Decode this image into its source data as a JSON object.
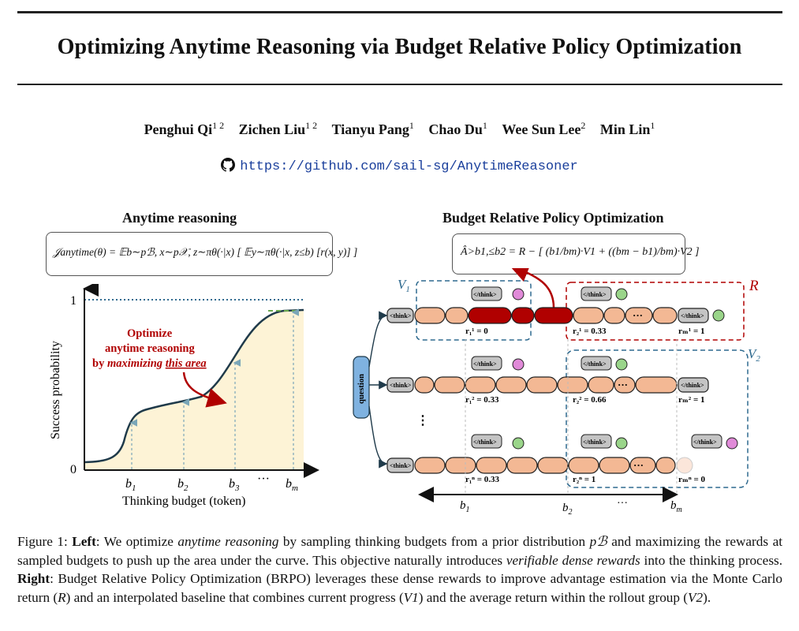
{
  "title": "Optimizing Anytime Reasoning via Budget Relative Policy Optimization",
  "authors": [
    {
      "name": "Penghui Qi",
      "aff": "1 2"
    },
    {
      "name": "Zichen Liu",
      "aff": "1 2"
    },
    {
      "name": "Tianyu Pang",
      "aff": "1"
    },
    {
      "name": "Chao Du",
      "aff": "1"
    },
    {
      "name": "Wee Sun Lee",
      "aff": "2"
    },
    {
      "name": "Min Lin",
      "aff": "1"
    }
  ],
  "repo_url": "https://github.com/sail-sg/AnytimeReasoner",
  "left_panel": {
    "heading": "Anytime reasoning",
    "objective": "𝒥anytime(θ) = 𝔼b∼pℬ, x∼p𝒳, z∼πθ(·|x) [ 𝔼y∼πθ(·|x, z≤b) [r(x, y)] ]",
    "annotation_line1": "Optimize",
    "annotation_line2": "anytime reasoning",
    "annotation_line3_prefix": "by ",
    "annotation_line3_emph": "maximizing",
    "annotation_line3_underlined": "this area",
    "ylabel": "Success probability",
    "xlabel": "Thinking budget (token)",
    "y_ticks": [
      "1",
      "0"
    ],
    "x_ticks": [
      "b1",
      "b2",
      "b3",
      "···",
      "bm"
    ]
  },
  "right_panel": {
    "heading": "Budget Relative Policy Optimization",
    "formula": "Â>b1,≤b2 = R − [ (b1/bm)·V1 + ((bm − b1)/bm)·V2 ]",
    "label_V1": "V1",
    "label_V2": "V2",
    "label_R": "R",
    "question": "question",
    "think_open": "<think>",
    "think_close": "</think>",
    "ellipsis": "···",
    "vertical_dots": "⋮",
    "row1_rewards": [
      "r₁¹ = 0",
      "r₂¹ = 0.33",
      "rₘ¹ = 1"
    ],
    "row2_rewards": [
      "r₁² = 0.33",
      "r₂² = 0.66",
      "rₘ² = 1"
    ],
    "row3_rewards": [
      "r₁ⁿ = 0.33",
      "r₂ⁿ = 1",
      "rₘⁿ = 0"
    ],
    "budget_axis": [
      "b1",
      "b2",
      "···",
      "bm"
    ]
  },
  "caption": {
    "fig": "Figure 1: ",
    "left_label": "Left",
    "t1": ": We optimize ",
    "e1": "anytime reasoning",
    "t2": " by sampling thinking budgets from a prior distribution ",
    "m1": "pℬ",
    "t3": " and maximizing the rewards at sampled budgets to push up the area under the curve. This objective naturally introduces ",
    "e2": "verifiable dense rewards",
    "t4": " into the thinking process. ",
    "right_label": "Right",
    "t5": ": Budget Relative Policy Optimization (BRPO) leverages these dense rewards to improve advantage estimation via the Monte Carlo return (",
    "m2": "R",
    "t6": ") and an interpolated baseline that combines current progress (",
    "m3": "V1",
    "t7": ") and the average return within the rollout group (",
    "m4": "V2",
    "t8": ")."
  },
  "colors": {
    "accent_red": "#b00000",
    "curve_fill": "#fdf3d6",
    "token_fill": "#f3b894",
    "think_fill": "#c4c4c4",
    "dashed_blue": "#2f6a8f",
    "question_fill": "#7fb2e0",
    "link_blue": "#1a3f9c"
  }
}
